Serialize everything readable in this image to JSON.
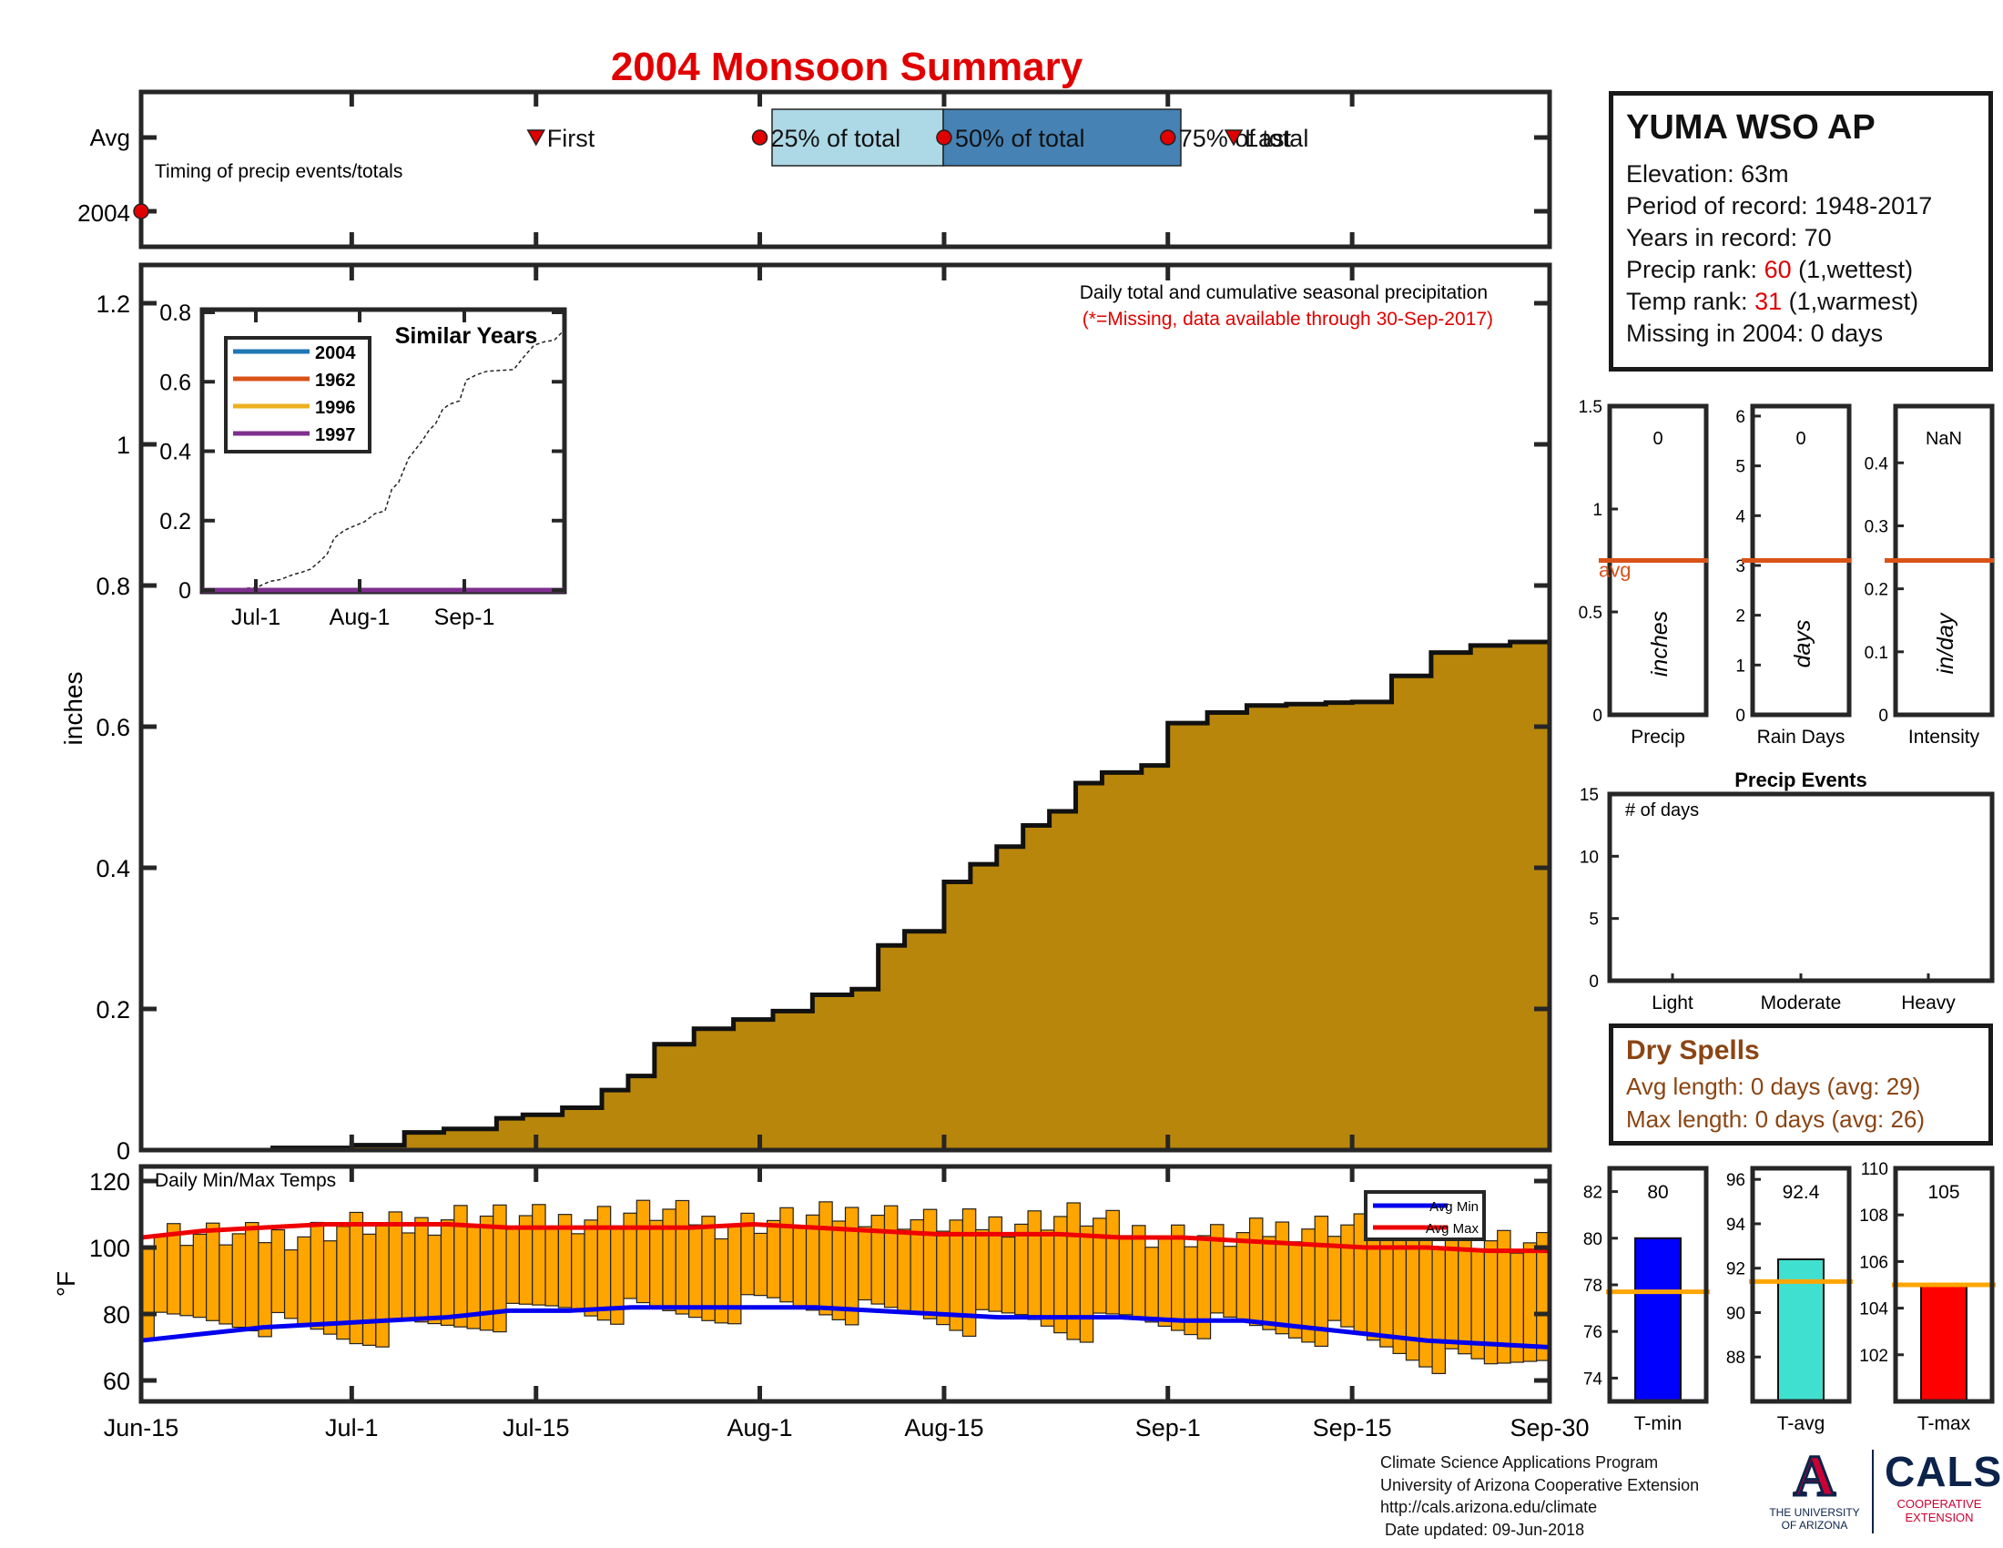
{
  "title": "2004 Monsoon Summary",
  "timing": {
    "row_labels": [
      "Avg",
      "2004"
    ],
    "caption": "Timing of precip events/totals",
    "avg_events": [
      {
        "label": "First",
        "date": "2004-07-15",
        "marker": "triangle"
      },
      {
        "label": "25% of total",
        "date": "2004-08-01",
        "marker": "circle"
      },
      {
        "label": "50% of total",
        "date": "2004-08-15",
        "marker": "circle"
      },
      {
        "label": "75% of total",
        "date": "2004-09-01",
        "marker": "circle"
      },
      {
        "label": "Last",
        "date": "2004-09-06",
        "marker": "triangle"
      }
    ],
    "year_events": [
      {
        "date": "2004-06-15",
        "marker": "circle"
      }
    ]
  },
  "station": {
    "name": "YUMA WSO AP",
    "elevation": "Elevation: 63m",
    "period": "Period of record: 1948-2017",
    "years": "Years in record: 70",
    "precip_rank_label": "Precip rank: ",
    "precip_rank_value": "60",
    "precip_rank_suffix": " (1,wettest)",
    "temp_rank_label": "Temp rank: ",
    "temp_rank_value": "31",
    "temp_rank_suffix": " (1,warmest)",
    "missing": "Missing in 2004: 0 days"
  },
  "main_panel": {
    "caption": "Daily total and cumulative seasonal precipitation",
    "note": "(*=Missing, data available through 30-Sep-2017)",
    "ylabel": "inches"
  },
  "inset": {
    "title": "Similar Years",
    "legend": [
      {
        "name": "2004",
        "color": "#1f77b4"
      },
      {
        "name": "1962",
        "color": "#d95319"
      },
      {
        "name": "1996",
        "color": "#edb120"
      },
      {
        "name": "1997",
        "color": "#7e2f8e"
      }
    ],
    "x_ticks": [
      "Jul-1",
      "Aug-1",
      "Sep-1"
    ],
    "y_ticks": [
      "0",
      "0.2",
      "0.4",
      "0.6",
      "0.8"
    ]
  },
  "small_panels": {
    "precip": {
      "value": "0",
      "unit": "inches",
      "xlabel": "Precip",
      "avg_label": "avg",
      "y_ticks": [
        "0",
        "0.5",
        "1",
        "1.5"
      ]
    },
    "rain_days": {
      "value": "0",
      "unit": "days",
      "xlabel": "Rain Days",
      "y_ticks": [
        "0",
        "1",
        "2",
        "3",
        "4",
        "5",
        "6"
      ]
    },
    "intensity": {
      "value": "NaN",
      "unit": "in/day",
      "xlabel": "Intensity",
      "y_ticks": [
        "0",
        "0.1",
        "0.2",
        "0.3",
        "0.4"
      ]
    }
  },
  "events_panel": {
    "title": "Precip Events",
    "caption": "# of days",
    "categories": [
      "Light",
      "Moderate",
      "Heavy"
    ],
    "y_ticks": [
      "0",
      "5",
      "10",
      "15"
    ]
  },
  "dry_spells": {
    "title": "Dry Spells",
    "avg": "Avg length: 0 days (avg: 29)",
    "max": "Max length: 0 days (avg: 26)"
  },
  "temp_panel": {
    "caption": "Daily Min/Max Temps",
    "ylabel": "°F",
    "legend": [
      {
        "name": "Avg Min",
        "color": "#0000ee"
      },
      {
        "name": "Avg Max",
        "color": "#ee0000"
      }
    ],
    "y_ticks": [
      "60",
      "80",
      "100",
      "120"
    ]
  },
  "temp_bars": {
    "tmin": {
      "value": "80",
      "xlabel": "T-min",
      "color": "#0000ff",
      "y_ticks": [
        "74",
        "76",
        "78",
        "80",
        "82"
      ]
    },
    "tavg": {
      "value": "92.4",
      "xlabel": "T-avg",
      "color": "#40e0d0",
      "y_ticks": [
        "88",
        "90",
        "92",
        "94",
        "96"
      ]
    },
    "tmax": {
      "value": "105",
      "xlabel": "T-max",
      "color": "#ff0000",
      "y_ticks": [
        "102",
        "104",
        "106",
        "108",
        "110"
      ]
    }
  },
  "x_axis": {
    "ticks": [
      "Jun-15",
      "Jul-1",
      "Jul-15",
      "Aug-1",
      "Aug-15",
      "Sep-1",
      "Sep-15",
      "Sep-30"
    ]
  },
  "credits": {
    "line1": "Climate Science Applications Program",
    "line2": "University of Arizona Cooperative Extension",
    "line3": "http://cals.arizona.edu/climate",
    "line4": " Date updated: 09-Jun-2018"
  },
  "logos": {
    "ua_letter": "A",
    "ua_line1": "THE UNIVERSITY",
    "ua_line2": "OF ARIZONA",
    "cals": "CALS",
    "cals_line1": "COOPERATIVE",
    "cals_line2": "EXTENSION"
  },
  "chart_data": [
    {
      "type": "area",
      "name": "cumulative seasonal precipitation",
      "xlabel": "",
      "ylabel": "inches",
      "ylim": [
        0,
        1.2
      ],
      "grid": false,
      "x": [
        "2004-06-15",
        "2004-06-25",
        "2004-07-01",
        "2004-07-05",
        "2004-07-08",
        "2004-07-12",
        "2004-07-14",
        "2004-07-17",
        "2004-07-20",
        "2004-07-22",
        "2004-07-24",
        "2004-07-27",
        "2004-07-30",
        "2004-08-02",
        "2004-08-05",
        "2004-08-08",
        "2004-08-10",
        "2004-08-12",
        "2004-08-15",
        "2004-08-17",
        "2004-08-19",
        "2004-08-21",
        "2004-08-23",
        "2004-08-25",
        "2004-08-27",
        "2004-08-30",
        "2004-09-01",
        "2004-09-04",
        "2004-09-07",
        "2004-09-10",
        "2004-09-13",
        "2004-09-15",
        "2004-09-18",
        "2004-09-21",
        "2004-09-24",
        "2004-09-27",
        "2004-09-30"
      ],
      "y": [
        0.0,
        0.003,
        0.007,
        0.025,
        0.03,
        0.045,
        0.05,
        0.06,
        0.085,
        0.105,
        0.15,
        0.172,
        0.185,
        0.197,
        0.22,
        0.228,
        0.29,
        0.31,
        0.38,
        0.405,
        0.43,
        0.46,
        0.48,
        0.52,
        0.535,
        0.545,
        0.605,
        0.62,
        0.63,
        0.632,
        0.634,
        0.635,
        0.672,
        0.705,
        0.715,
        0.72,
        0.75
      ]
    },
    {
      "type": "line",
      "name": "Similar Years",
      "x": [
        "Jun-15",
        "Sep-30"
      ],
      "ylim": [
        0,
        0.8
      ],
      "series": [
        {
          "name": "2004",
          "values": [
            0,
            0
          ]
        },
        {
          "name": "1962",
          "values": [
            0,
            0
          ]
        },
        {
          "name": "1996",
          "values": [
            0,
            0
          ]
        },
        {
          "name": "1997",
          "values": [
            0,
            0
          ]
        }
      ],
      "legend_position": "top-left"
    },
    {
      "type": "line",
      "name": "Daily Min/Max Temps",
      "ylabel": "°F",
      "ylim": [
        55,
        125
      ],
      "x_range": [
        "2004-06-15",
        "2004-09-30"
      ],
      "series": [
        {
          "name": "Avg Min",
          "values": [
            72,
            74,
            76,
            77,
            78,
            79,
            81,
            81,
            82,
            82,
            82,
            82,
            81,
            80,
            79,
            79,
            79,
            78,
            78,
            76,
            74,
            72,
            71,
            70
          ]
        },
        {
          "name": "Avg Max",
          "values": [
            103,
            105,
            106,
            107,
            107,
            107,
            106,
            106,
            106,
            106,
            107,
            106,
            105,
            104,
            104,
            104,
            103,
            103,
            102,
            101,
            100,
            100,
            99,
            99
          ]
        },
        {
          "name": "daily max",
          "values": [
            105,
            104,
            103,
            104,
            107,
            106,
            110,
            109,
            108,
            110,
            111,
            107,
            108,
            109,
            111,
            108,
            107,
            108,
            110,
            105,
            104,
            103,
            106,
            107,
            106,
            104,
            102,
            100
          ]
        },
        {
          "name": "daily min",
          "values": [
            76,
            78,
            78,
            75,
            73,
            75,
            77,
            79,
            82,
            81,
            80,
            80,
            83,
            82,
            80,
            80,
            77,
            79,
            75,
            78,
            77,
            76,
            75,
            74,
            70,
            66,
            64,
            69
          ]
        }
      ],
      "legend_position": "top-right"
    },
    {
      "type": "bar",
      "name": "Precip",
      "categories": [
        "Precip"
      ],
      "values": [
        0
      ],
      "avg": 0.75,
      "ylim": [
        0,
        1.5
      ]
    },
    {
      "type": "bar",
      "name": "Rain Days",
      "categories": [
        "Rain Days"
      ],
      "values": [
        0
      ],
      "avg": 3.1,
      "ylim": [
        0,
        6.2
      ]
    },
    {
      "type": "bar",
      "name": "Intensity",
      "categories": [
        "Intensity"
      ],
      "values": [
        null
      ],
      "avg": 0.245,
      "ylim": [
        0,
        0.49
      ]
    },
    {
      "type": "bar",
      "name": "Precip Events",
      "categories": [
        "Light",
        "Moderate",
        "Heavy"
      ],
      "values": [
        0,
        0,
        0
      ],
      "ylim": [
        0,
        15
      ]
    },
    {
      "type": "bar",
      "name": "T-min",
      "categories": [
        "T-min"
      ],
      "values": [
        80
      ],
      "avg": 77.7,
      "ylim": [
        73,
        83
      ]
    },
    {
      "type": "bar",
      "name": "T-avg",
      "categories": [
        "T-avg"
      ],
      "values": [
        92.4
      ],
      "avg": 91.4,
      "ylim": [
        86,
        96.5
      ]
    },
    {
      "type": "bar",
      "name": "T-max",
      "categories": [
        "T-max"
      ],
      "values": [
        105
      ],
      "avg": 105.0,
      "ylim": [
        100,
        110
      ]
    }
  ]
}
